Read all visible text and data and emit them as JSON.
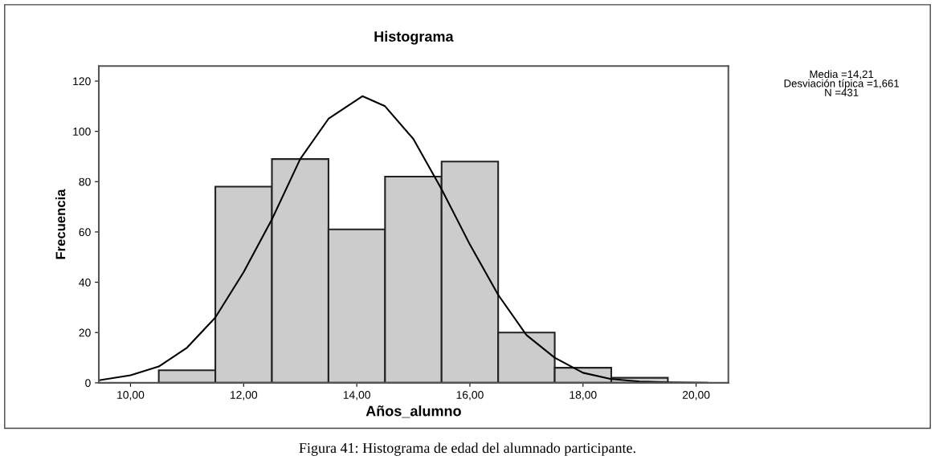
{
  "chart_data": {
    "type": "histogram",
    "title": "Histograma",
    "xlabel": "Años_alumno",
    "ylabel": "Frecuencia",
    "bins": [
      10.5,
      11.5,
      12.5,
      13.5,
      14.5,
      15.5,
      16.5,
      17.5,
      18.5,
      19.5
    ],
    "values": [
      5,
      78,
      89,
      61,
      82,
      88,
      20,
      6,
      2
    ],
    "color": "#cccccc",
    "series": [
      {
        "type": "line",
        "color": "#000000",
        "x": [
          9.44,
          10.0,
          10.5,
          11.0,
          11.5,
          12.0,
          12.5,
          13.0,
          13.5,
          14.1,
          14.5,
          15.0,
          15.5,
          16.0,
          16.5,
          17.0,
          17.5,
          18.0,
          18.5,
          19.0,
          19.5,
          20.2
        ],
        "values": [
          1,
          3,
          6.5,
          14,
          26,
          44,
          65,
          89,
          105,
          114,
          110,
          97,
          77,
          55,
          35,
          19,
          10,
          4,
          1.5,
          0.5,
          0.2,
          0
        ]
      }
    ],
    "xlim": [
      9.44,
      20.57
    ],
    "ylim": [
      0,
      126
    ],
    "xticks": [
      {
        "value": 10,
        "label": "10,00"
      },
      {
        "value": 12,
        "label": "12,00"
      },
      {
        "value": 14,
        "label": "14,00"
      },
      {
        "value": 16,
        "label": "16,00"
      },
      {
        "value": 18,
        "label": "18,00"
      },
      {
        "value": 20,
        "label": "20,00"
      }
    ],
    "yticks": [
      0,
      20,
      40,
      60,
      80,
      100,
      120
    ],
    "annotations": [
      "Media =14,21\nDesviación típica =1,661\nN =431",
      "Figura 41: Histograma de edad del alumnado participante."
    ]
  }
}
